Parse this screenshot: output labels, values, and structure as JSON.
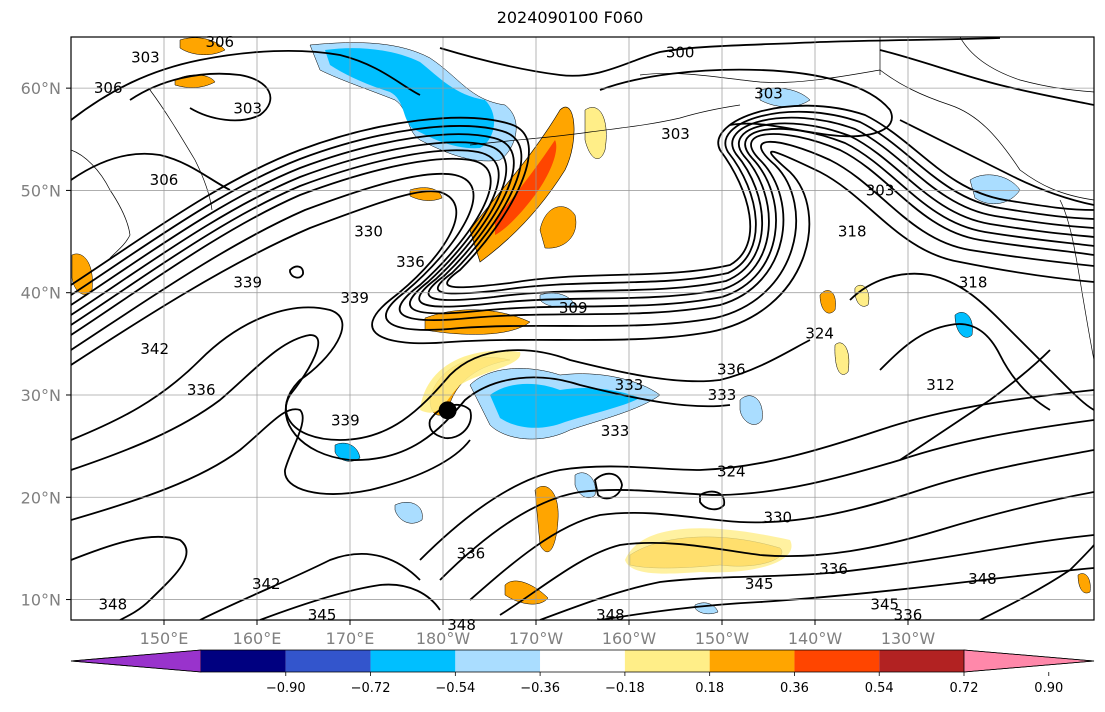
{
  "title": "2024090100 F060",
  "map": {
    "lon_range": [
      140,
      250
    ],
    "lat_range": [
      8,
      65
    ],
    "lon_ticks": [
      {
        "lon": 150,
        "label": "150°E"
      },
      {
        "lon": 160,
        "label": "160°E"
      },
      {
        "lon": 170,
        "label": "170°E"
      },
      {
        "lon": 180,
        "label": "180°W"
      },
      {
        "lon": 190,
        "label": "170°W"
      },
      {
        "lon": 200,
        "label": "160°W"
      },
      {
        "lon": 210,
        "label": "150°W"
      },
      {
        "lon": 220,
        "label": "140°W"
      },
      {
        "lon": 230,
        "label": "130°W"
      }
    ],
    "lat_ticks": [
      {
        "lat": 10,
        "label": "10°N"
      },
      {
        "lat": 20,
        "label": "20°N"
      },
      {
        "lat": 30,
        "label": "30°N"
      },
      {
        "lat": 40,
        "label": "40°N"
      },
      {
        "lat": 50,
        "label": "50°N"
      },
      {
        "lat": 60,
        "label": "60°N"
      }
    ],
    "grid": true,
    "marker": {
      "lon": 180.5,
      "lat": 28.5
    },
    "contour_labels": [
      {
        "text": "300",
        "lon": 205.5,
        "lat": 63.5
      },
      {
        "text": "303",
        "lon": 148,
        "lat": 63
      },
      {
        "text": "306",
        "lon": 156,
        "lat": 64.5
      },
      {
        "text": "306",
        "lon": 144,
        "lat": 60
      },
      {
        "text": "303",
        "lon": 159,
        "lat": 58
      },
      {
        "text": "303",
        "lon": 215,
        "lat": 59.5
      },
      {
        "text": "303",
        "lon": 205,
        "lat": 55.5
      },
      {
        "text": "303",
        "lon": 227,
        "lat": 50
      },
      {
        "text": "306",
        "lon": 150,
        "lat": 51
      },
      {
        "text": "318",
        "lon": 224,
        "lat": 46
      },
      {
        "text": "318",
        "lon": 237,
        "lat": 41
      },
      {
        "text": "330",
        "lon": 172,
        "lat": 46
      },
      {
        "text": "336",
        "lon": 176.5,
        "lat": 43
      },
      {
        "text": "339",
        "lon": 159,
        "lat": 41
      },
      {
        "text": "339",
        "lon": 170.5,
        "lat": 39.5
      },
      {
        "text": "309",
        "lon": 194,
        "lat": 38.5
      },
      {
        "text": "342",
        "lon": 149,
        "lat": 34.5
      },
      {
        "text": "324",
        "lon": 220.5,
        "lat": 36
      },
      {
        "text": "336",
        "lon": 211,
        "lat": 32.5
      },
      {
        "text": "336",
        "lon": 154,
        "lat": 30.5
      },
      {
        "text": "333",
        "lon": 200,
        "lat": 31
      },
      {
        "text": "333",
        "lon": 210,
        "lat": 30
      },
      {
        "text": "339",
        "lon": 169.5,
        "lat": 27.5
      },
      {
        "text": "333",
        "lon": 198.5,
        "lat": 26.5
      },
      {
        "text": "324",
        "lon": 211,
        "lat": 22.5
      },
      {
        "text": "312",
        "lon": 233.5,
        "lat": 31
      },
      {
        "text": "330",
        "lon": 216,
        "lat": 18
      },
      {
        "text": "336",
        "lon": 222,
        "lat": 13
      },
      {
        "text": "336",
        "lon": 183,
        "lat": 14.5
      },
      {
        "text": "348",
        "lon": 238,
        "lat": 12
      },
      {
        "text": "342",
        "lon": 161,
        "lat": 11.5
      },
      {
        "text": "345",
        "lon": 214,
        "lat": 11.5
      },
      {
        "text": "348",
        "lon": 144.5,
        "lat": 9.5
      },
      {
        "text": "345",
        "lon": 167,
        "lat": 8.5
      },
      {
        "text": "348",
        "lon": 182,
        "lat": 7.5
      },
      {
        "text": "348",
        "lon": 198,
        "lat": 8.5
      },
      {
        "text": "345",
        "lon": 227.5,
        "lat": 9.5
      },
      {
        "text": "336",
        "lon": 230,
        "lat": 8.5
      }
    ]
  },
  "colorbar": {
    "levels": [
      "−0.90",
      "−0.72",
      "−0.54",
      "−0.36",
      "−0.18",
      "0.18",
      "0.36",
      "0.54",
      "0.72",
      "0.90"
    ],
    "colors": [
      "#9933cc",
      "#000080",
      "#3355cc",
      "#00bfff",
      "#aaddff",
      "#ffffff",
      "#ffee88",
      "#ffa500",
      "#ff4500",
      "#b22222",
      "#ff88aa"
    ]
  }
}
